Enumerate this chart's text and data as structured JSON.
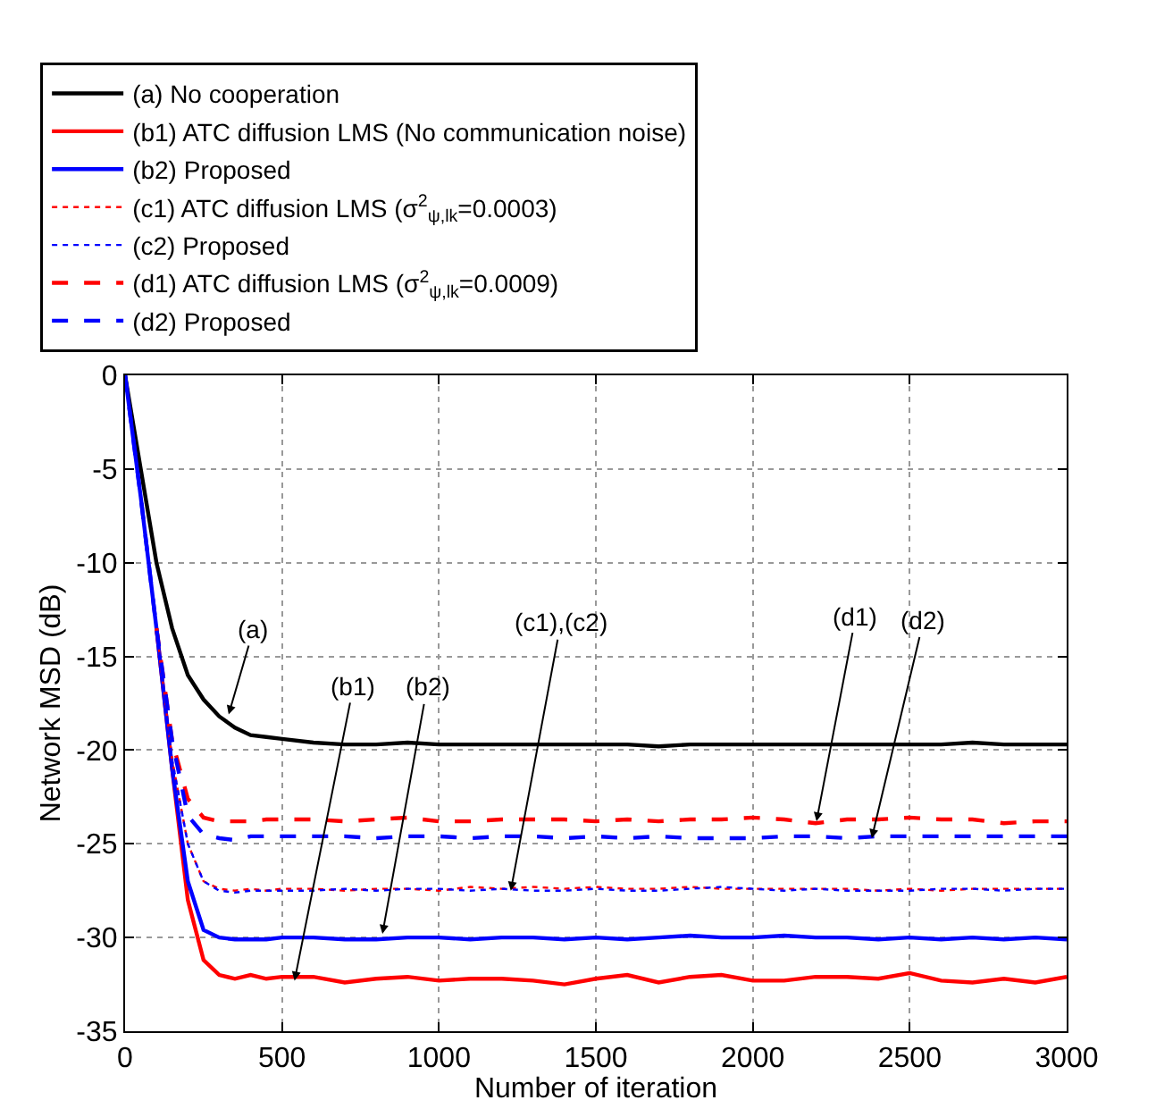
{
  "chart_data": {
    "type": "line",
    "xlabel": "Number of iteration",
    "ylabel": "Network MSD (dB)",
    "x": [
      0,
      50,
      100,
      150,
      200,
      250,
      300,
      350,
      400,
      450,
      500,
      600,
      700,
      800,
      900,
      1000,
      1100,
      1200,
      1300,
      1400,
      1500,
      1600,
      1700,
      1800,
      1900,
      2000,
      2100,
      2200,
      2300,
      2400,
      2500,
      2600,
      2700,
      2800,
      2900,
      3000
    ],
    "series": [
      {
        "name": "(a) No cooperation",
        "color": "#000000",
        "line_style": "solid",
        "values": [
          0,
          -5,
          -10,
          -13.5,
          -16,
          -17.3,
          -18.2,
          -18.8,
          -19.2,
          -19.3,
          -19.4,
          -19.6,
          -19.7,
          -19.7,
          -19.6,
          -19.7,
          -19.7,
          -19.7,
          -19.7,
          -19.7,
          -19.7,
          -19.7,
          -19.8,
          -19.7,
          -19.7,
          -19.7,
          -19.7,
          -19.7,
          -19.7,
          -19.7,
          -19.7,
          -19.7,
          -19.6,
          -19.7,
          -19.7,
          -19.7
        ]
      },
      {
        "name": "(b1) ATC diffusion LMS (No communication noise)",
        "color": "#ff0000",
        "line_style": "solid",
        "values": [
          null,
          null,
          -13.5,
          -21,
          -28,
          -31.2,
          -32,
          -32.2,
          -32,
          -32.2,
          -32.1,
          -32.1,
          -32.4,
          -32.2,
          -32.1,
          -32.3,
          -32.2,
          -32.2,
          -32.3,
          -32.5,
          -32.2,
          -32,
          -32.4,
          -32.1,
          -32,
          -32.3,
          -32.3,
          -32.1,
          -32.1,
          -32.2,
          -31.9,
          -32.3,
          -32.4,
          -32.2,
          -32.4,
          -32.1
        ]
      },
      {
        "name": "(b2) Proposed",
        "color": "#0000ff",
        "line_style": "solid",
        "values": [
          0,
          -6.5,
          -13.5,
          -21,
          -27,
          -29.6,
          -30,
          -30.1,
          -30.1,
          -30.1,
          -30,
          -30,
          -30.1,
          -30.1,
          -30,
          -30,
          -30.1,
          -30,
          -30,
          -30.1,
          -30,
          -30.1,
          -30,
          -29.9,
          -30,
          -30,
          -29.9,
          -30,
          -30,
          -30.1,
          -30,
          -30.1,
          -30,
          -30.1,
          -30,
          -30.1
        ]
      },
      {
        "name": "(c1) ATC diffusion LMS (σ$^{2}$$_{ψ,lk}$=0.0003)",
        "color": "#ff0000",
        "line_style": "dotted",
        "values": [
          null,
          null,
          -13.5,
          -20.5,
          -25,
          -27,
          -27.4,
          -27.5,
          -27.4,
          -27.5,
          -27.4,
          -27.4,
          -27.5,
          -27.4,
          -27.4,
          -27.5,
          -27.3,
          -27.4,
          -27.3,
          -27.4,
          -27.3,
          -27.4,
          -27.4,
          -27.3,
          -27.4,
          -27.4,
          -27.4,
          -27.4,
          -27.4,
          -27.5,
          -27.4,
          -27.5,
          -27.4,
          -27.4,
          -27.4,
          -27.4
        ]
      },
      {
        "name": "(c2) Proposed",
        "color": "#0000ff",
        "line_style": "dotted",
        "values": [
          0,
          -6.5,
          -13.5,
          -20.5,
          -25,
          -27,
          -27.5,
          -27.6,
          -27.5,
          -27.5,
          -27.5,
          -27.5,
          -27.4,
          -27.5,
          -27.4,
          -27.4,
          -27.5,
          -27.4,
          -27.5,
          -27.5,
          -27.4,
          -27.5,
          -27.5,
          -27.4,
          -27.3,
          -27.4,
          -27.5,
          -27.4,
          -27.5,
          -27.5,
          -27.5,
          -27.4,
          -27.4,
          -27.5,
          -27.4,
          -27.4
        ]
      },
      {
        "name": "(d1) ATC diffusion LMS (σ$^{2}$$_{ψ,lk}$=0.0009)",
        "color": "#ff0000",
        "line_style": "dashed",
        "values": [
          null,
          null,
          -13.5,
          -19.5,
          -22.6,
          -23.6,
          -23.8,
          -23.8,
          -23.8,
          -23.7,
          -23.7,
          -23.7,
          -23.8,
          -23.7,
          -23.6,
          -23.8,
          -23.8,
          -23.7,
          -23.7,
          -23.7,
          -23.8,
          -23.7,
          -23.8,
          -23.7,
          -23.7,
          -23.6,
          -23.7,
          -23.9,
          -23.7,
          -23.7,
          -23.6,
          -23.7,
          -23.7,
          -23.9,
          -23.8,
          -23.8
        ]
      },
      {
        "name": "(d2) Proposed",
        "color": "#0000ff",
        "line_style": "dashed",
        "values": [
          0,
          -6.5,
          -13.5,
          -19.5,
          -23.5,
          -24.5,
          -24.7,
          -24.8,
          -24.6,
          -24.6,
          -24.6,
          -24.6,
          -24.6,
          -24.7,
          -24.6,
          -24.6,
          -24.7,
          -24.6,
          -24.6,
          -24.7,
          -24.6,
          -24.7,
          -24.6,
          -24.7,
          -24.7,
          -24.7,
          -24.6,
          -24.6,
          -24.7,
          -24.6,
          -24.6,
          -24.6,
          -24.6,
          -24.6,
          -24.6,
          -24.6
        ]
      }
    ],
    "xlim": [
      0,
      3000
    ],
    "xticks": [
      0,
      500,
      1000,
      1500,
      2000,
      2500,
      3000
    ],
    "ylim": [
      -35,
      0
    ],
    "yticks": [
      -35,
      -30,
      -25,
      -20,
      -15,
      -10,
      -5,
      0
    ],
    "grid": true,
    "legend": "top",
    "marker": "none",
    "annotations": [
      {
        "text": "(a)",
        "x": 330,
        "y": -18.1
      },
      {
        "text": "(b1)",
        "x": 540,
        "y": -32.3
      },
      {
        "text": "(b2)",
        "x": 820,
        "y": -29.8
      },
      {
        "text": "(c1),(c2)",
        "x": 1229,
        "y": -27.5
      },
      {
        "text": "(d1)",
        "x": 2203,
        "y": -23.8
      },
      {
        "text": "(d2)",
        "x": 2379,
        "y": -24.7
      }
    ]
  }
}
